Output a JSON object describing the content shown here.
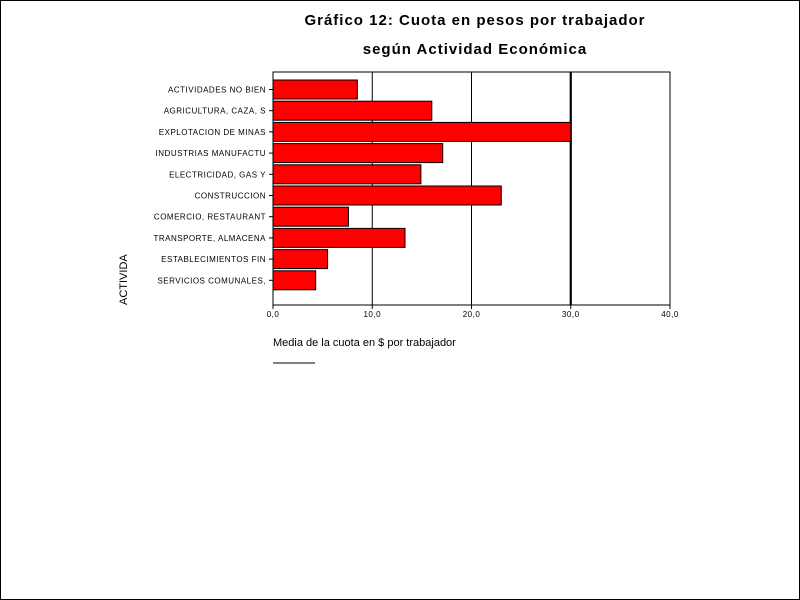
{
  "chart_data": {
    "type": "bar",
    "orientation": "horizontal",
    "title": "Gráfico 12: Cuota en pesos por trabajador",
    "subtitle": "según Actividad Económica",
    "xlabel": "Media de la cuota en $ por trabajador",
    "ylabel": "ACTIVIDA",
    "categories": [
      "ACTIVIDADES NO BIEN",
      "AGRICULTURA, CAZA, S",
      "EXPLOTACION DE MINAS",
      "INDUSTRIAS MANUFACTU",
      "ELECTRICIDAD, GAS Y",
      "CONSTRUCCION",
      "COMERCIO, RESTAURANT",
      "TRANSPORTE, ALMACENA",
      "ESTABLECIMIENTOS FIN",
      "SERVICIOS COMUNALES,"
    ],
    "values": [
      8.5,
      16.0,
      30.0,
      17.1,
      14.9,
      23.0,
      7.6,
      13.3,
      5.5,
      4.3
    ],
    "xlim": [
      0,
      40
    ],
    "xticks": [
      0,
      10,
      20,
      30,
      40
    ],
    "xtick_labels": [
      "0,0",
      "10,0",
      "20,0",
      "30,0",
      "40,0"
    ],
    "reference_line": 30,
    "grid": true,
    "bar_color": "#ff0000",
    "bar_edge_color": "#000000"
  }
}
